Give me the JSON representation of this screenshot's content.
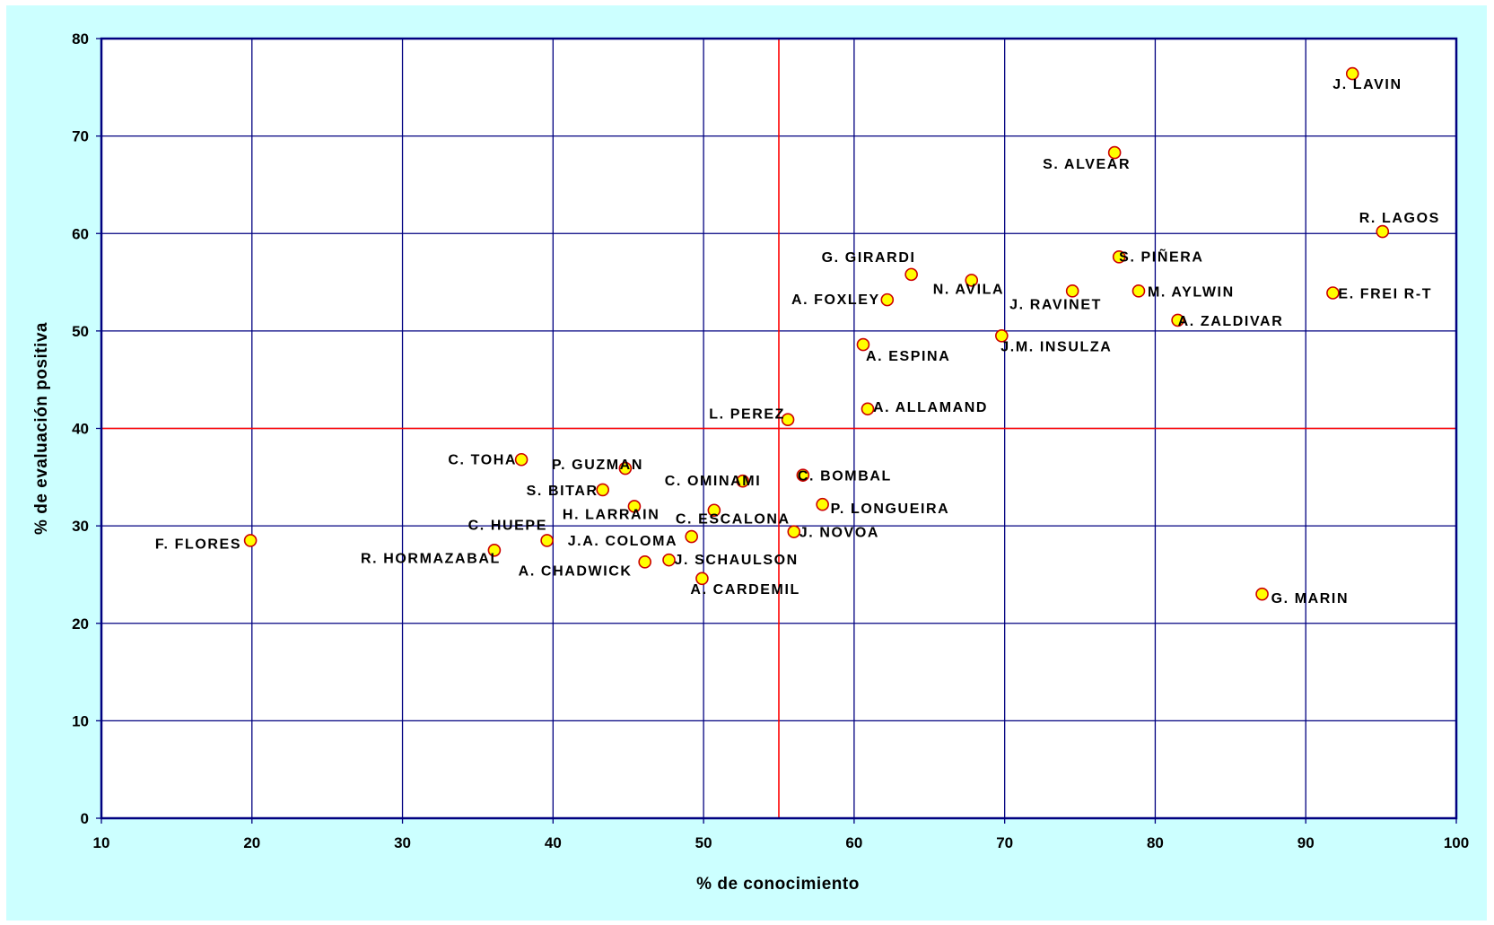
{
  "colors": {
    "chart_background": "#ccffff",
    "plot_background": "#ffffff",
    "grid": "#000080",
    "reference_lines": "#ff0000",
    "marker_fill": "#ffff00",
    "marker_stroke": "#cc0000"
  },
  "chart_data": {
    "type": "scatter",
    "title": "",
    "xlabel": "% de conocimiento",
    "ylabel": "% de evaluación positiva",
    "xlim": [
      10,
      100
    ],
    "ylim": [
      0,
      80
    ],
    "xticks": [
      10,
      20,
      30,
      40,
      50,
      60,
      70,
      80,
      90,
      100
    ],
    "yticks": [
      0,
      10,
      20,
      30,
      40,
      50,
      60,
      70,
      80
    ],
    "grid": true,
    "reference_lines": {
      "x": 55,
      "y": 40
    },
    "points": [
      {
        "label": "J. LAVIN",
        "x": 93.1,
        "y": 76.4
      },
      {
        "label": "S. ALVEAR",
        "x": 77.3,
        "y": 68.3
      },
      {
        "label": "R. LAGOS",
        "x": 95.1,
        "y": 60.2
      },
      {
        "label": "S. PIÑERA",
        "x": 77.6,
        "y": 57.6
      },
      {
        "label": "G. GIRARDI",
        "x": 63.8,
        "y": 55.8
      },
      {
        "label": "N. AVILA",
        "x": 67.8,
        "y": 55.2
      },
      {
        "label": "J. RAVINET",
        "x": 74.5,
        "y": 54.1
      },
      {
        "label": "M. AYLWIN",
        "x": 78.9,
        "y": 54.1
      },
      {
        "label": "E. FREI R-T",
        "x": 91.8,
        "y": 53.9
      },
      {
        "label": "A. FOXLEY",
        "x": 62.2,
        "y": 53.2
      },
      {
        "label": "A. ZALDIVAR",
        "x": 81.5,
        "y": 51.1
      },
      {
        "label": "J.M. INSULZA",
        "x": 69.8,
        "y": 49.5
      },
      {
        "label": "A. ESPINA",
        "x": 60.6,
        "y": 48.6
      },
      {
        "label": "A. ALLAMAND",
        "x": 60.9,
        "y": 42.0
      },
      {
        "label": "L. PEREZ",
        "x": 55.6,
        "y": 40.9
      },
      {
        "label": "C. TOHA",
        "x": 37.9,
        "y": 36.8
      },
      {
        "label": "P. GUZMAN",
        "x": 44.8,
        "y": 35.9
      },
      {
        "label": "C. OMINAMI",
        "x": 52.6,
        "y": 34.6
      },
      {
        "label": "C. BOMBAL",
        "x": 56.6,
        "y": 35.2
      },
      {
        "label": "S. BITAR",
        "x": 43.3,
        "y": 33.7
      },
      {
        "label": "H. LARRAIN",
        "x": 45.4,
        "y": 32.0
      },
      {
        "label": "C. ESCALONA",
        "x": 50.7,
        "y": 31.6
      },
      {
        "label": "P. LONGUEIRA",
        "x": 57.9,
        "y": 32.2
      },
      {
        "label": "J. NOVOA",
        "x": 56.0,
        "y": 29.4
      },
      {
        "label": "C. HUEPE",
        "x": 39.6,
        "y": 28.5
      },
      {
        "label": "J.A. COLOMA",
        "x": 49.2,
        "y": 28.9
      },
      {
        "label": "F. FLORES",
        "x": 19.9,
        "y": 28.5
      },
      {
        "label": "R. HORMAZABAL",
        "x": 36.1,
        "y": 27.5
      },
      {
        "label": "J. SCHAULSON",
        "x": 47.7,
        "y": 26.5
      },
      {
        "label": "A. CHADWICK",
        "x": 46.1,
        "y": 26.3
      },
      {
        "label": "A. CARDEMIL",
        "x": 49.9,
        "y": 24.6
      },
      {
        "label": "G. MARIN",
        "x": 87.1,
        "y": 23.0
      }
    ]
  }
}
